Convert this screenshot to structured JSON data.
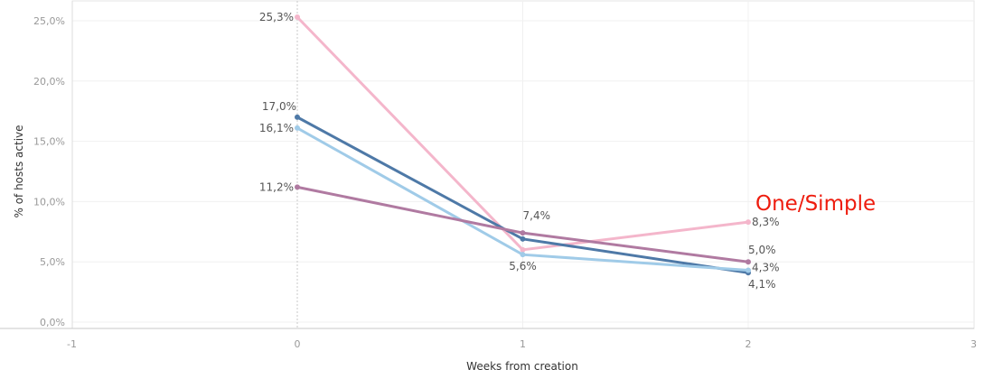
{
  "chart_data": {
    "type": "line",
    "title": "",
    "annotation": "One/Simple",
    "xlabel": "Weeks from creation",
    "ylabel": "% of hosts active",
    "xlim": [
      -1,
      3
    ],
    "ylim": [
      0,
      26
    ],
    "x_ticks": [
      "-1",
      "0",
      "1",
      "2",
      "3"
    ],
    "y_ticks": [
      "0,0%",
      "5,0%",
      "10,0%",
      "15,0%",
      "20,0%",
      "25,0%"
    ],
    "x": [
      0,
      1,
      2
    ],
    "series": [
      {
        "name": "pink",
        "color": "#f4b6cb",
        "values": [
          25.3,
          6.0,
          8.3
        ],
        "labels": [
          "25,3%",
          "",
          "8,3%"
        ]
      },
      {
        "name": "dark-blue",
        "color": "#4e79a7",
        "values": [
          17.0,
          6.9,
          4.1
        ],
        "labels": [
          "17,0%",
          "",
          "4,1%"
        ]
      },
      {
        "name": "light-blue",
        "color": "#a0cbe8",
        "values": [
          16.1,
          5.6,
          4.3
        ],
        "labels": [
          "16,1%",
          "5,6%",
          "4,3%"
        ]
      },
      {
        "name": "purple",
        "color": "#b07aa1",
        "values": [
          11.2,
          7.4,
          5.0
        ],
        "labels": [
          "11,2%",
          "7,4%",
          "5,0%"
        ]
      }
    ],
    "grid": true,
    "legend": "none"
  }
}
